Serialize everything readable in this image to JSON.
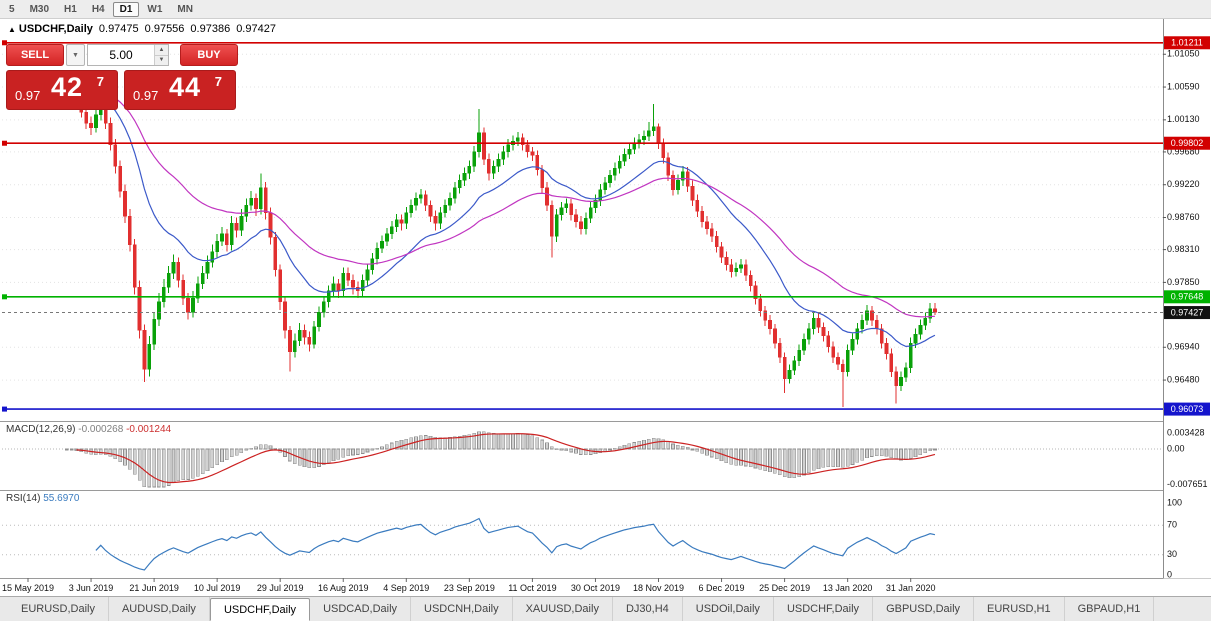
{
  "toolbar": {
    "timeframes": [
      {
        "label": "5",
        "active": false
      },
      {
        "label": "M30",
        "active": false
      },
      {
        "label": "H1",
        "active": false
      },
      {
        "label": "H4",
        "active": false
      },
      {
        "label": "D1",
        "active": true
      },
      {
        "label": "W1",
        "active": false
      },
      {
        "label": "MN",
        "active": false
      }
    ]
  },
  "quote": {
    "direction_icon": "▲",
    "symbol": "USDCHF,Daily",
    "open": "0.97475",
    "high": "0.97556",
    "low": "0.97386",
    "close": "0.97427"
  },
  "trade": {
    "sell_label": "SELL",
    "buy_label": "BUY",
    "volume": "5.00",
    "sell_price": {
      "base": "0.97",
      "big": "42",
      "sup": "7"
    },
    "buy_price": {
      "base": "0.97",
      "big": "44",
      "sup": "7"
    }
  },
  "price_axis": {
    "labels": [
      {
        "t": "1.01050",
        "v": 1.0105
      },
      {
        "t": "1.00590",
        "v": 1.0059
      },
      {
        "t": "1.00130",
        "v": 1.0013
      },
      {
        "t": "0.99680",
        "v": 0.9968
      },
      {
        "t": "0.99220",
        "v": 0.9922
      },
      {
        "t": "0.98760",
        "v": 0.9876
      },
      {
        "t": "0.98310",
        "v": 0.9831
      },
      {
        "t": "0.97850",
        "v": 0.9785
      },
      {
        "t": "0.96940",
        "v": 0.9694
      },
      {
        "t": "0.96480",
        "v": 0.9648
      }
    ]
  },
  "indicators": {
    "macd": {
      "name": "MACD(12,26,9)",
      "value_main": "-0.000268",
      "value_signal": "-0.001244",
      "axis": [
        {
          "t": "0.003428",
          "v": 0.003428
        },
        {
          "t": "0.00",
          "v": 0
        },
        {
          "t": "-0.007651",
          "v": -0.007651
        }
      ]
    },
    "rsi": {
      "name": "RSI(14)",
      "value": "55.6970",
      "axis": [
        {
          "t": "100",
          "v": 100
        },
        {
          "t": "70",
          "v": 70
        },
        {
          "t": "30",
          "v": 30
        },
        {
          "t": "0",
          "v": 0
        }
      ],
      "levels": [
        70,
        30
      ]
    }
  },
  "dates": [
    "15 May 2019",
    "3 Jun 2019",
    "21 Jun 2019",
    "10 Jul 2019",
    "29 Jul 2019",
    "16 Aug 2019",
    "4 Sep 2019",
    "23 Sep 2019",
    "11 Oct 2019",
    "30 Oct 2019",
    "18 Nov 2019",
    "6 Dec 2019",
    "25 Dec 2019",
    "13 Jan 2020",
    "31 Jan 2020"
  ],
  "tabs": [
    {
      "label": "EURUSD,Daily",
      "active": false
    },
    {
      "label": "AUDUSD,Daily",
      "active": false
    },
    {
      "label": "USDCHF,Daily",
      "active": true
    },
    {
      "label": "USDCAD,Daily",
      "active": false
    },
    {
      "label": "USDCNH,Daily",
      "active": false
    },
    {
      "label": "XAUUSD,Daily",
      "active": false
    },
    {
      "label": "DJ30,H4",
      "active": false
    },
    {
      "label": "USDOil,Daily",
      "active": false
    },
    {
      "label": "USDCHF,Daily",
      "active": false
    },
    {
      "label": "GBPUSD,Daily",
      "active": false
    },
    {
      "label": "EURUSD,H1",
      "active": false
    },
    {
      "label": "GBPAUD,H1",
      "active": false
    }
  ],
  "chart_data": {
    "type": "candlestick",
    "title": "USDCHF,Daily",
    "symbol": "USDCHF",
    "period": "Daily",
    "ylim": [
      0.9592,
      1.0132
    ],
    "colors": {
      "up": "#09a109",
      "down": "#e12f2f",
      "ma_fast": "#3b59c9",
      "ma_slow": "#c136c1",
      "macd_bar_fill": "#d2d2d2",
      "macd_bar_stroke": "#8f8f8f",
      "macd_signal": "#cc2222",
      "rsi_line": "#3a7bbf",
      "grid": "#e3e3e3"
    },
    "ma": [
      {
        "type": "ema",
        "period": 20,
        "color": "#3b59c9"
      },
      {
        "type": "ema",
        "period": 45,
        "color": "#c136c1"
      }
    ],
    "macd_params": {
      "fast": 12,
      "slow": 26,
      "signal": 9
    },
    "rsi_period": 14,
    "lines": [
      {
        "label": "1.01211",
        "v": 1.01211,
        "color": "#d20000"
      },
      {
        "label": "0.99802",
        "v": 0.99802,
        "color": "#d20000"
      },
      {
        "label": "0.97648",
        "v": 0.97648,
        "color": "#00b200"
      },
      {
        "label": "0.96073",
        "v": 0.96073,
        "color": "#1414cc"
      }
    ],
    "bid": {
      "label": "0.97427",
      "v": 0.97427,
      "color": "#111111"
    },
    "last_ohlc": {
      "open": 0.97475,
      "high": 0.97556,
      "low": 0.97386,
      "close": 0.97427
    },
    "candles": [
      [
        1.0058,
        1.0072,
        1.0048,
        1.0065
      ],
      [
        1.0065,
        1.0073,
        1.0047,
        1.0055
      ],
      [
        1.0055,
        1.0076,
        1.0048,
        1.0068
      ],
      [
        1.0068,
        1.0075,
        1.0044,
        1.0052
      ],
      [
        1.0052,
        1.0063,
        1.0036,
        1.0046
      ],
      [
        1.0046,
        1.006,
        1.0038,
        1.0052
      ],
      [
        1.0052,
        1.0068,
        1.0044,
        1.006
      ],
      [
        1.006,
        1.0076,
        1.0052,
        1.0068
      ],
      [
        1.0068,
        1.0078,
        1.0058,
        1.0072
      ],
      [
        1.0072,
        1.0078,
        1.004,
        1.0048
      ],
      [
        1.0048,
        1.0056,
        1.0028,
        1.0036
      ],
      [
        1.0036,
        1.0046,
        1.0016,
        1.0024
      ],
      [
        1.0024,
        1.0032,
        1.0,
        1.0008
      ],
      [
        1.0008,
        1.0018,
        0.9992,
        1.0002
      ],
      [
        1.0002,
        1.0028,
        0.9995,
        1.002
      ],
      [
        1.002,
        1.0046,
        1.0012,
        1.0038
      ],
      [
        1.0038,
        1.0044,
        1.0,
        1.0008
      ],
      [
        1.0008,
        1.0016,
        0.997,
        0.9978
      ],
      [
        0.9978,
        0.9986,
        0.9938,
        0.9948
      ],
      [
        0.9948,
        0.9956,
        0.9904,
        0.9913
      ],
      [
        0.9913,
        0.9922,
        0.9868,
        0.9878
      ],
      [
        0.9878,
        0.9888,
        0.9828,
        0.9838
      ],
      [
        0.9838,
        0.9846,
        0.9768,
        0.9778
      ],
      [
        0.9778,
        0.9788,
        0.9706,
        0.9718
      ],
      [
        0.9718,
        0.9726,
        0.9645,
        0.9663
      ],
      [
        0.9663,
        0.971,
        0.9653,
        0.9698
      ],
      [
        0.9698,
        0.9743,
        0.969,
        0.9733
      ],
      [
        0.9733,
        0.977,
        0.9724,
        0.9758
      ],
      [
        0.9758,
        0.979,
        0.975,
        0.9778
      ],
      [
        0.9778,
        0.9808,
        0.977,
        0.9798
      ],
      [
        0.9798,
        0.9824,
        0.979,
        0.9813
      ],
      [
        0.9813,
        0.982,
        0.9778,
        0.9788
      ],
      [
        0.9788,
        0.9796,
        0.9753,
        0.9763
      ],
      [
        0.9763,
        0.977,
        0.9733,
        0.9743
      ],
      [
        0.9743,
        0.9773,
        0.9736,
        0.9763
      ],
      [
        0.9763,
        0.9793,
        0.9756,
        0.9783
      ],
      [
        0.9783,
        0.9808,
        0.9776,
        0.9798
      ],
      [
        0.9798,
        0.9823,
        0.979,
        0.9813
      ],
      [
        0.9813,
        0.9838,
        0.9806,
        0.9828
      ],
      [
        0.9828,
        0.9853,
        0.982,
        0.9843
      ],
      [
        0.9843,
        0.9863,
        0.9836,
        0.9853
      ],
      [
        0.9853,
        0.986,
        0.9828,
        0.9838
      ],
      [
        0.9838,
        0.9878,
        0.983,
        0.9868
      ],
      [
        0.9868,
        0.9876,
        0.9848,
        0.9858
      ],
      [
        0.9858,
        0.9888,
        0.985,
        0.9878
      ],
      [
        0.9878,
        0.9903,
        0.987,
        0.9893
      ],
      [
        0.9893,
        0.9913,
        0.9886,
        0.9903
      ],
      [
        0.9903,
        0.991,
        0.9878,
        0.9888
      ],
      [
        0.9888,
        0.9938,
        0.988,
        0.9918
      ],
      [
        0.9918,
        0.9926,
        0.9873,
        0.9883
      ],
      [
        0.9883,
        0.989,
        0.9838,
        0.9848
      ],
      [
        0.9848,
        0.9856,
        0.9793,
        0.9803
      ],
      [
        0.9803,
        0.981,
        0.9746,
        0.9758
      ],
      [
        0.9758,
        0.9766,
        0.9706,
        0.9718
      ],
      [
        0.9718,
        0.9724,
        0.966,
        0.9688
      ],
      [
        0.9688,
        0.9713,
        0.968,
        0.9703
      ],
      [
        0.9703,
        0.9728,
        0.9696,
        0.9718
      ],
      [
        0.9718,
        0.9726,
        0.9698,
        0.9708
      ],
      [
        0.9708,
        0.9716,
        0.9688,
        0.9698
      ],
      [
        0.9698,
        0.9731,
        0.9692,
        0.9723
      ],
      [
        0.9723,
        0.9751,
        0.9716,
        0.9743
      ],
      [
        0.9743,
        0.9766,
        0.9736,
        0.9758
      ],
      [
        0.9758,
        0.9781,
        0.975,
        0.9773
      ],
      [
        0.9773,
        0.9793,
        0.9766,
        0.9783
      ],
      [
        0.9783,
        0.979,
        0.9763,
        0.9773
      ],
      [
        0.9773,
        0.9806,
        0.9766,
        0.9798
      ],
      [
        0.9798,
        0.9806,
        0.978,
        0.9788
      ],
      [
        0.9788,
        0.9796,
        0.9768,
        0.9778
      ],
      [
        0.9778,
        0.9786,
        0.9763,
        0.9773
      ],
      [
        0.9773,
        0.9796,
        0.9766,
        0.9788
      ],
      [
        0.9788,
        0.9811,
        0.9781,
        0.9803
      ],
      [
        0.9803,
        0.9826,
        0.9796,
        0.9818
      ],
      [
        0.9818,
        0.9841,
        0.981,
        0.9833
      ],
      [
        0.9833,
        0.9851,
        0.9826,
        0.9843
      ],
      [
        0.9843,
        0.9861,
        0.9836,
        0.9853
      ],
      [
        0.9853,
        0.9871,
        0.9846,
        0.9863
      ],
      [
        0.9863,
        0.9881,
        0.9856,
        0.9873
      ],
      [
        0.9873,
        0.988,
        0.9858,
        0.9868
      ],
      [
        0.9868,
        0.9891,
        0.986,
        0.9883
      ],
      [
        0.9883,
        0.9901,
        0.9876,
        0.9893
      ],
      [
        0.9893,
        0.9911,
        0.9886,
        0.9903
      ],
      [
        0.9903,
        0.9916,
        0.9896,
        0.9908
      ],
      [
        0.9908,
        0.9914,
        0.9885,
        0.9893
      ],
      [
        0.9893,
        0.99,
        0.987,
        0.9878
      ],
      [
        0.9878,
        0.9886,
        0.9858,
        0.9868
      ],
      [
        0.9868,
        0.9891,
        0.986,
        0.9883
      ],
      [
        0.9883,
        0.9901,
        0.9876,
        0.9893
      ],
      [
        0.9893,
        0.9911,
        0.9886,
        0.9903
      ],
      [
        0.9903,
        0.9926,
        0.9896,
        0.9918
      ],
      [
        0.9918,
        0.9936,
        0.991,
        0.9928
      ],
      [
        0.9928,
        0.9946,
        0.992,
        0.9938
      ],
      [
        0.9938,
        0.9956,
        0.993,
        0.9948
      ],
      [
        0.9948,
        0.9976,
        0.994,
        0.9968
      ],
      [
        0.9968,
        1.0028,
        0.996,
        0.9995
      ],
      [
        0.9995,
        1.0002,
        0.995,
        0.9958
      ],
      [
        0.9958,
        0.9966,
        0.9928,
        0.9938
      ],
      [
        0.9938,
        0.9956,
        0.993,
        0.9948
      ],
      [
        0.9948,
        0.9966,
        0.994,
        0.9958
      ],
      [
        0.9958,
        0.9976,
        0.995,
        0.9968
      ],
      [
        0.9968,
        0.9986,
        0.996,
        0.9978
      ],
      [
        0.9978,
        0.9991,
        0.997,
        0.9983
      ],
      [
        0.9983,
        0.9996,
        0.9976,
        0.9988
      ],
      [
        0.9988,
        0.9994,
        0.997,
        0.9978
      ],
      [
        0.9978,
        0.9985,
        0.996,
        0.9968
      ],
      [
        0.9968,
        0.9975,
        0.9955,
        0.9963
      ],
      [
        0.9963,
        0.997,
        0.9935,
        0.9943
      ],
      [
        0.9943,
        0.995,
        0.991,
        0.9918
      ],
      [
        0.9918,
        0.9926,
        0.9885,
        0.9893
      ],
      [
        0.9893,
        0.99,
        0.982,
        0.985
      ],
      [
        0.985,
        0.9888,
        0.9842,
        0.988
      ],
      [
        0.988,
        0.9898,
        0.9872,
        0.989
      ],
      [
        0.989,
        0.9903,
        0.9882,
        0.9895
      ],
      [
        0.9895,
        0.9902,
        0.9872,
        0.988
      ],
      [
        0.988,
        0.9888,
        0.9862,
        0.987
      ],
      [
        0.987,
        0.9878,
        0.9852,
        0.986
      ],
      [
        0.986,
        0.9883,
        0.9852,
        0.9875
      ],
      [
        0.9875,
        0.9898,
        0.9868,
        0.989
      ],
      [
        0.989,
        0.9908,
        0.9882,
        0.99
      ],
      [
        0.99,
        0.9923,
        0.9892,
        0.9915
      ],
      [
        0.9915,
        0.9933,
        0.9908,
        0.9925
      ],
      [
        0.9925,
        0.9943,
        0.9918,
        0.9935
      ],
      [
        0.9935,
        0.9953,
        0.9928,
        0.9945
      ],
      [
        0.9945,
        0.9963,
        0.9938,
        0.9955
      ],
      [
        0.9955,
        0.9973,
        0.9948,
        0.9965
      ],
      [
        0.9965,
        0.998,
        0.9958,
        0.9972
      ],
      [
        0.9972,
        0.9988,
        0.9965,
        0.998
      ],
      [
        0.998,
        0.9993,
        0.9973,
        0.9985
      ],
      [
        0.9985,
        0.9998,
        0.9978,
        0.999
      ],
      [
        0.999,
        1.001,
        0.9983,
        0.9998
      ],
      [
        0.9998,
        1.0035,
        0.999,
        1.0003
      ],
      [
        1.0003,
        1.0008,
        0.9972,
        0.998
      ],
      [
        0.998,
        0.9987,
        0.9952,
        0.996
      ],
      [
        0.996,
        0.9967,
        0.9927,
        0.9935
      ],
      [
        0.9935,
        0.9942,
        0.9907,
        0.9915
      ],
      [
        0.9915,
        0.9936,
        0.9908,
        0.9928
      ],
      [
        0.9928,
        0.9948,
        0.992,
        0.994
      ],
      [
        0.994,
        0.9947,
        0.9912,
        0.992
      ],
      [
        0.992,
        0.9928,
        0.9892,
        0.99
      ],
      [
        0.99,
        0.9908,
        0.9877,
        0.9885
      ],
      [
        0.9885,
        0.9892,
        0.9862,
        0.987
      ],
      [
        0.987,
        0.9878,
        0.9852,
        0.986
      ],
      [
        0.986,
        0.9868,
        0.9842,
        0.985
      ],
      [
        0.985,
        0.9857,
        0.9827,
        0.9835
      ],
      [
        0.9835,
        0.9842,
        0.9812,
        0.982
      ],
      [
        0.982,
        0.9828,
        0.9802,
        0.981
      ],
      [
        0.981,
        0.9818,
        0.9792,
        0.98
      ],
      [
        0.98,
        0.9813,
        0.9793,
        0.9805
      ],
      [
        0.9805,
        0.9818,
        0.9798,
        0.981
      ],
      [
        0.981,
        0.9817,
        0.9787,
        0.9795
      ],
      [
        0.9795,
        0.9802,
        0.9772,
        0.978
      ],
      [
        0.978,
        0.9787,
        0.9754,
        0.9762
      ],
      [
        0.9762,
        0.9769,
        0.9737,
        0.9745
      ],
      [
        0.9745,
        0.9752,
        0.9724,
        0.9732
      ],
      [
        0.9732,
        0.9739,
        0.9712,
        0.972
      ],
      [
        0.972,
        0.9727,
        0.9692,
        0.97
      ],
      [
        0.97,
        0.9707,
        0.9672,
        0.968
      ],
      [
        0.968,
        0.9687,
        0.963,
        0.965
      ],
      [
        0.965,
        0.967,
        0.9643,
        0.9662
      ],
      [
        0.9662,
        0.9682,
        0.9655,
        0.9675
      ],
      [
        0.9675,
        0.9698,
        0.9668,
        0.969
      ],
      [
        0.969,
        0.9713,
        0.9683,
        0.9705
      ],
      [
        0.9705,
        0.9728,
        0.9698,
        0.972
      ],
      [
        0.972,
        0.9742,
        0.9712,
        0.9735
      ],
      [
        0.9735,
        0.9742,
        0.9714,
        0.9722
      ],
      [
        0.9722,
        0.9729,
        0.9702,
        0.971
      ],
      [
        0.971,
        0.9717,
        0.9687,
        0.9695
      ],
      [
        0.9695,
        0.9702,
        0.9672,
        0.968
      ],
      [
        0.968,
        0.9687,
        0.9662,
        0.967
      ],
      [
        0.967,
        0.9677,
        0.961,
        0.966
      ],
      [
        0.966,
        0.9698,
        0.9653,
        0.969
      ],
      [
        0.969,
        0.9713,
        0.9683,
        0.9705
      ],
      [
        0.9705,
        0.9728,
        0.9698,
        0.972
      ],
      [
        0.972,
        0.974,
        0.9713,
        0.9732
      ],
      [
        0.9732,
        0.9753,
        0.9725,
        0.9745
      ],
      [
        0.9745,
        0.9752,
        0.9724,
        0.9732
      ],
      [
        0.9732,
        0.9739,
        0.9712,
        0.972
      ],
      [
        0.972,
        0.9727,
        0.9692,
        0.97
      ],
      [
        0.97,
        0.9707,
        0.9677,
        0.9685
      ],
      [
        0.9685,
        0.9692,
        0.9652,
        0.966
      ],
      [
        0.966,
        0.9667,
        0.9615,
        0.964
      ],
      [
        0.964,
        0.966,
        0.9633,
        0.9652
      ],
      [
        0.9652,
        0.9673,
        0.9645,
        0.9665
      ],
      [
        0.9665,
        0.9708,
        0.9658,
        0.97
      ],
      [
        0.97,
        0.972,
        0.9693,
        0.9712
      ],
      [
        0.9712,
        0.9733,
        0.9705,
        0.9725
      ],
      [
        0.9725,
        0.9743,
        0.9718,
        0.9735
      ],
      [
        0.9735,
        0.9756,
        0.9728,
        0.9748
      ],
      [
        0.9748,
        0.9756,
        0.9739,
        0.9743
      ]
    ]
  }
}
